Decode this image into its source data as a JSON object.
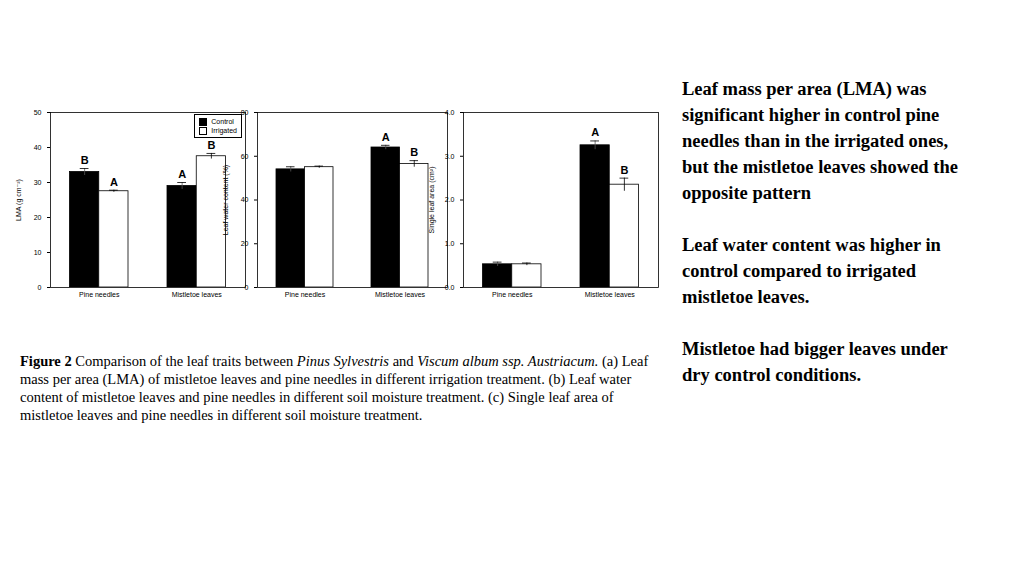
{
  "chart_data": [
    {
      "type": "bar",
      "ylabel": "LMA (g cm⁻²)",
      "categories": [
        "Pine needles",
        "Mistletoe leaves"
      ],
      "series": [
        {
          "name": "Control",
          "color": "#000000",
          "values": [
            33,
            29
          ],
          "errors": [
            1,
            1
          ],
          "annotations": [
            "B",
            "A"
          ]
        },
        {
          "name": "Irrigated",
          "color": "#ffffff",
          "values": [
            27.5,
            37.5
          ],
          "errors": [
            0.3,
            0.8
          ],
          "annotations": [
            "A",
            "B"
          ]
        }
      ],
      "ylim": [
        0,
        50
      ],
      "yticks": [
        0,
        10,
        20,
        30,
        40,
        50
      ],
      "legend": "top-right"
    },
    {
      "type": "bar",
      "ylabel": "Leaf water content (%)",
      "categories": [
        "Pine needles",
        "Mistletoe leaves"
      ],
      "series": [
        {
          "name": "Control",
          "color": "#000000",
          "values": [
            54,
            64
          ],
          "errors": [
            1.2,
            1
          ],
          "annotations": [
            null,
            "A"
          ]
        },
        {
          "name": "Irrigated",
          "color": "#ffffff",
          "values": [
            55,
            56.5
          ],
          "errors": [
            0.5,
            1.5
          ],
          "annotations": [
            null,
            "B"
          ]
        }
      ],
      "ylim": [
        0,
        80
      ],
      "yticks": [
        0,
        20,
        40,
        60,
        80
      ]
    },
    {
      "type": "bar",
      "ylabel": "Single leaf area (cm²)",
      "categories": [
        "Pine needles",
        "Mistletoe leaves"
      ],
      "series": [
        {
          "name": "Control",
          "color": "#000000",
          "values": [
            0.53,
            3.25
          ],
          "errors": [
            0.05,
            0.1
          ],
          "annotations": [
            null,
            "A"
          ]
        },
        {
          "name": "Irrigated",
          "color": "#ffffff",
          "values": [
            0.53,
            2.35
          ],
          "errors": [
            0.03,
            0.15
          ],
          "annotations": [
            null,
            "B"
          ]
        }
      ],
      "ylim": [
        0,
        4
      ],
      "yticks": [
        0,
        1,
        2,
        3,
        4
      ]
    }
  ],
  "caption": [
    {
      "text": "Figure 2",
      "bold": true
    },
    {
      "text": " Comparison of the leaf traits between "
    },
    {
      "text": "Pinus Sylvestris",
      "italic": true
    },
    {
      "text": " and "
    },
    {
      "text": "Viscum album ssp. Austriacum.",
      "italic": true
    },
    {
      "text": " (a) Leaf mass per area (LMA) of mistletoe leaves and pine needles in different irrigation treatment. (b) Leaf water content of mistletoe leaves and pine needles in different soil moisture treatment. (c) Single leaf area of mistletoe leaves and pine needles in different soil moisture treatment."
    }
  ],
  "notes": [
    "Leaf mass per area (LMA) was significant higher in control pine needles than in the irrigated ones, but the mistletoe leaves showed the opposite pattern",
    "Leaf water content was higher in control compared to irrigated mistletoe leaves.",
    "Mistletoe had bigger leaves under dry control conditions."
  ]
}
